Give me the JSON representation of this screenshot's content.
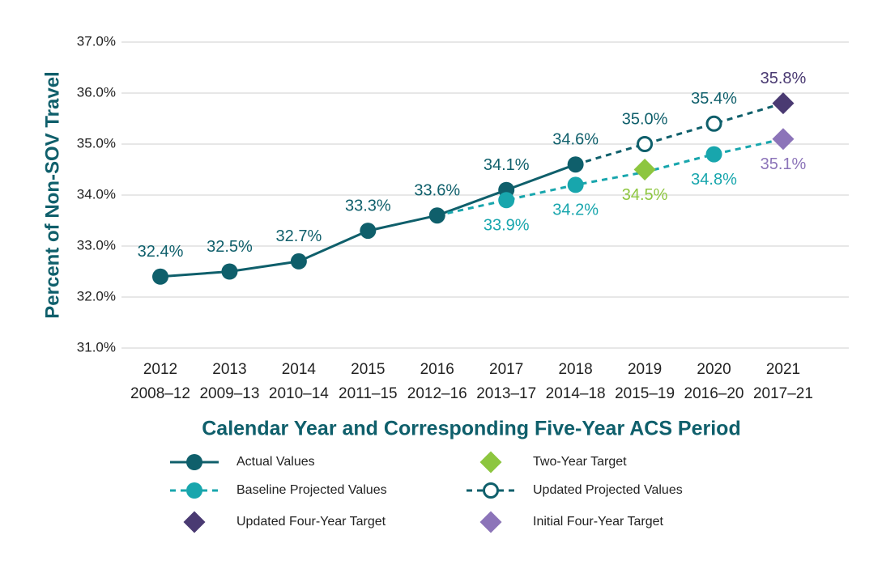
{
  "chart_data": {
    "type": "line",
    "y_label": "Percent of Non-SOV Travel",
    "x_label": "Calendar Year and Corresponding Five-Year ACS Period",
    "categories": [
      "2012",
      "2013",
      "2014",
      "2015",
      "2016",
      "2017",
      "2018",
      "2019",
      "2020",
      "2021"
    ],
    "periods": [
      "2008–12",
      "2009–13",
      "2010–14",
      "2011–15",
      "2012–16",
      "2013–17",
      "2014–18",
      "2015–19",
      "2016–20",
      "2017–21"
    ],
    "ylim": [
      31,
      37
    ],
    "yticks": [
      {
        "value": 31,
        "label": "31.0%"
      },
      {
        "value": 32,
        "label": "32.0%"
      },
      {
        "value": 33,
        "label": "33.0%"
      },
      {
        "value": 34,
        "label": "34.0%"
      },
      {
        "value": 35,
        "label": "35.0%"
      },
      {
        "value": 36,
        "label": "36.0%"
      },
      {
        "value": 37,
        "label": "37.0%"
      }
    ],
    "grid": true,
    "series": [
      {
        "name": "Actual Values",
        "color": "#0f5f6b",
        "line": "solid",
        "marker": "circle",
        "label_position": "above",
        "values": [
          32.4,
          32.5,
          32.7,
          33.3,
          33.6,
          34.1,
          34.6,
          null,
          null,
          null
        ],
        "value_labels": [
          "32.4%",
          "32.5%",
          "32.7%",
          "33.3%",
          "33.6%",
          "34.1%",
          "34.6%",
          null,
          null,
          null
        ]
      },
      {
        "name": "Two-Year Target",
        "color": "#8dc63f",
        "line": "none",
        "marker": "diamond",
        "label_position": "below",
        "values": [
          null,
          null,
          null,
          null,
          null,
          null,
          null,
          34.5,
          null,
          null
        ],
        "value_labels": [
          null,
          null,
          null,
          null,
          null,
          null,
          null,
          "34.5%",
          null,
          null
        ]
      },
      {
        "name": "Baseline Projected Values",
        "color": "#18a6ad",
        "line": "dashed",
        "marker": "circle",
        "label_position": "below",
        "values": [
          null,
          null,
          null,
          null,
          33.6,
          33.9,
          34.2,
          34.45,
          34.8,
          35.1
        ],
        "value_labels": [
          null,
          null,
          null,
          null,
          null,
          "33.9%",
          "34.2%",
          null,
          "34.8%",
          null
        ]
      },
      {
        "name": "Updated Projected Values",
        "color": "#0f5f6b",
        "line": "dashed",
        "marker": "open-circle",
        "label_position": "above",
        "values": [
          null,
          null,
          null,
          null,
          null,
          null,
          34.6,
          35.0,
          35.4,
          35.8
        ],
        "value_labels": [
          null,
          null,
          null,
          null,
          null,
          null,
          null,
          "35.0%",
          "35.4%",
          null
        ]
      },
      {
        "name": "Updated Four-Year Target",
        "color": "#4a3a72",
        "line": "none",
        "marker": "diamond",
        "label_position": "above",
        "values": [
          null,
          null,
          null,
          null,
          null,
          null,
          null,
          null,
          null,
          35.8
        ],
        "value_labels": [
          null,
          null,
          null,
          null,
          null,
          null,
          null,
          null,
          null,
          "35.8%"
        ]
      },
      {
        "name": "Initial Four-Year Target",
        "color": "#8c74b9",
        "line": "none",
        "marker": "diamond",
        "label_position": "below",
        "values": [
          null,
          null,
          null,
          null,
          null,
          null,
          null,
          null,
          null,
          35.1
        ],
        "value_labels": [
          null,
          null,
          null,
          null,
          null,
          null,
          null,
          null,
          null,
          "35.1%"
        ]
      }
    ]
  }
}
